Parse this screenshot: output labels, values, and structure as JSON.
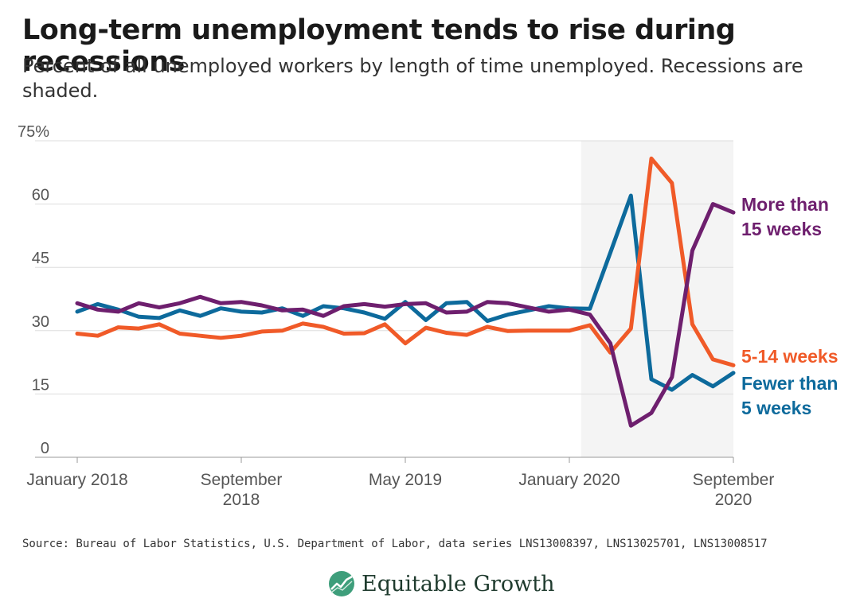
{
  "title": "Long-term unemployment tends to rise during recessions",
  "subtitle": "Percent of all unemployed workers by length of time unemployed. Recessions are shaded.",
  "source": "Source: Bureau of Labor Statistics, U.S. Department of Labor, data series LNS13008397, LNS13025701, LNS13008517",
  "brand": "Equitable Growth",
  "colors": {
    "fewer_than_5": "#0d6a9c",
    "five_to_14": "#f05a28",
    "more_than_15": "#6e1f6e",
    "recession": "#f4f4f4",
    "grid": "#dddddd",
    "axis_text": "#555555",
    "logo": "#3e9e7b"
  },
  "chart_data": {
    "type": "line",
    "x": [
      "2018-01",
      "2018-02",
      "2018-03",
      "2018-04",
      "2018-05",
      "2018-06",
      "2018-07",
      "2018-08",
      "2018-09",
      "2018-10",
      "2018-11",
      "2018-12",
      "2019-01",
      "2019-02",
      "2019-03",
      "2019-04",
      "2019-05",
      "2019-06",
      "2019-07",
      "2019-08",
      "2019-09",
      "2019-10",
      "2019-11",
      "2019-12",
      "2020-01",
      "2020-02",
      "2020-03",
      "2020-04",
      "2020-05",
      "2020-06",
      "2020-07",
      "2020-08",
      "2020-09"
    ],
    "x_ticks": [
      {
        "x": "2018-01",
        "label": [
          "January 2018"
        ]
      },
      {
        "x": "2018-09",
        "label": [
          "September",
          "2018"
        ]
      },
      {
        "x": "2019-05",
        "label": [
          "May 2019"
        ]
      },
      {
        "x": "2020-01",
        "label": [
          "January 2020"
        ]
      },
      {
        "x": "2020-09",
        "label": [
          "September",
          "2020"
        ]
      }
    ],
    "ylim": [
      0,
      75
    ],
    "y_ticks": [
      0,
      15,
      30,
      45,
      60,
      75
    ],
    "y_tick_labels": [
      "0",
      "15",
      "30",
      "45",
      "60",
      "75%"
    ],
    "grid": true,
    "recession": {
      "start": "2020-02",
      "end": "2020-09"
    },
    "series": [
      {
        "name": "Fewer than 5 weeks",
        "label": [
          "Fewer than",
          "5 weeks"
        ],
        "color_key": "fewer_than_5",
        "values": [
          34.5,
          36.3,
          35.0,
          33.3,
          33.0,
          34.8,
          33.5,
          35.3,
          34.5,
          34.3,
          35.3,
          33.5,
          35.8,
          35.3,
          34.3,
          32.8,
          36.8,
          32.5,
          36.5,
          36.8,
          32.3,
          33.8,
          34.8,
          35.8,
          35.3,
          35.2,
          48.5,
          62.0,
          18.5,
          16.0,
          19.5,
          16.8,
          20.0
        ]
      },
      {
        "name": "5-14 weeks",
        "label": [
          "5-14 weeks"
        ],
        "color_key": "five_to_14",
        "values": [
          29.3,
          28.8,
          30.8,
          30.5,
          31.5,
          29.3,
          28.8,
          28.3,
          28.8,
          29.8,
          30.0,
          31.7,
          30.9,
          29.3,
          29.4,
          31.5,
          27.0,
          30.7,
          29.5,
          29.0,
          30.9,
          29.9,
          30.0,
          30.0,
          30.0,
          31.3,
          24.8,
          30.5,
          70.8,
          65.0,
          31.5,
          23.2,
          21.8
        ]
      },
      {
        "name": "More than 15 weeks",
        "label": [
          "More than",
          "15 weeks"
        ],
        "color_key": "more_than_15",
        "values": [
          36.5,
          35.0,
          34.5,
          36.5,
          35.5,
          36.5,
          38.0,
          36.5,
          36.8,
          36.0,
          34.8,
          35.0,
          33.5,
          35.8,
          36.3,
          35.7,
          36.3,
          36.5,
          34.3,
          34.5,
          36.8,
          36.5,
          35.5,
          34.5,
          35.0,
          33.8,
          27.0,
          7.5,
          10.5,
          19.0,
          49.0,
          60.0,
          58.0
        ]
      }
    ]
  }
}
